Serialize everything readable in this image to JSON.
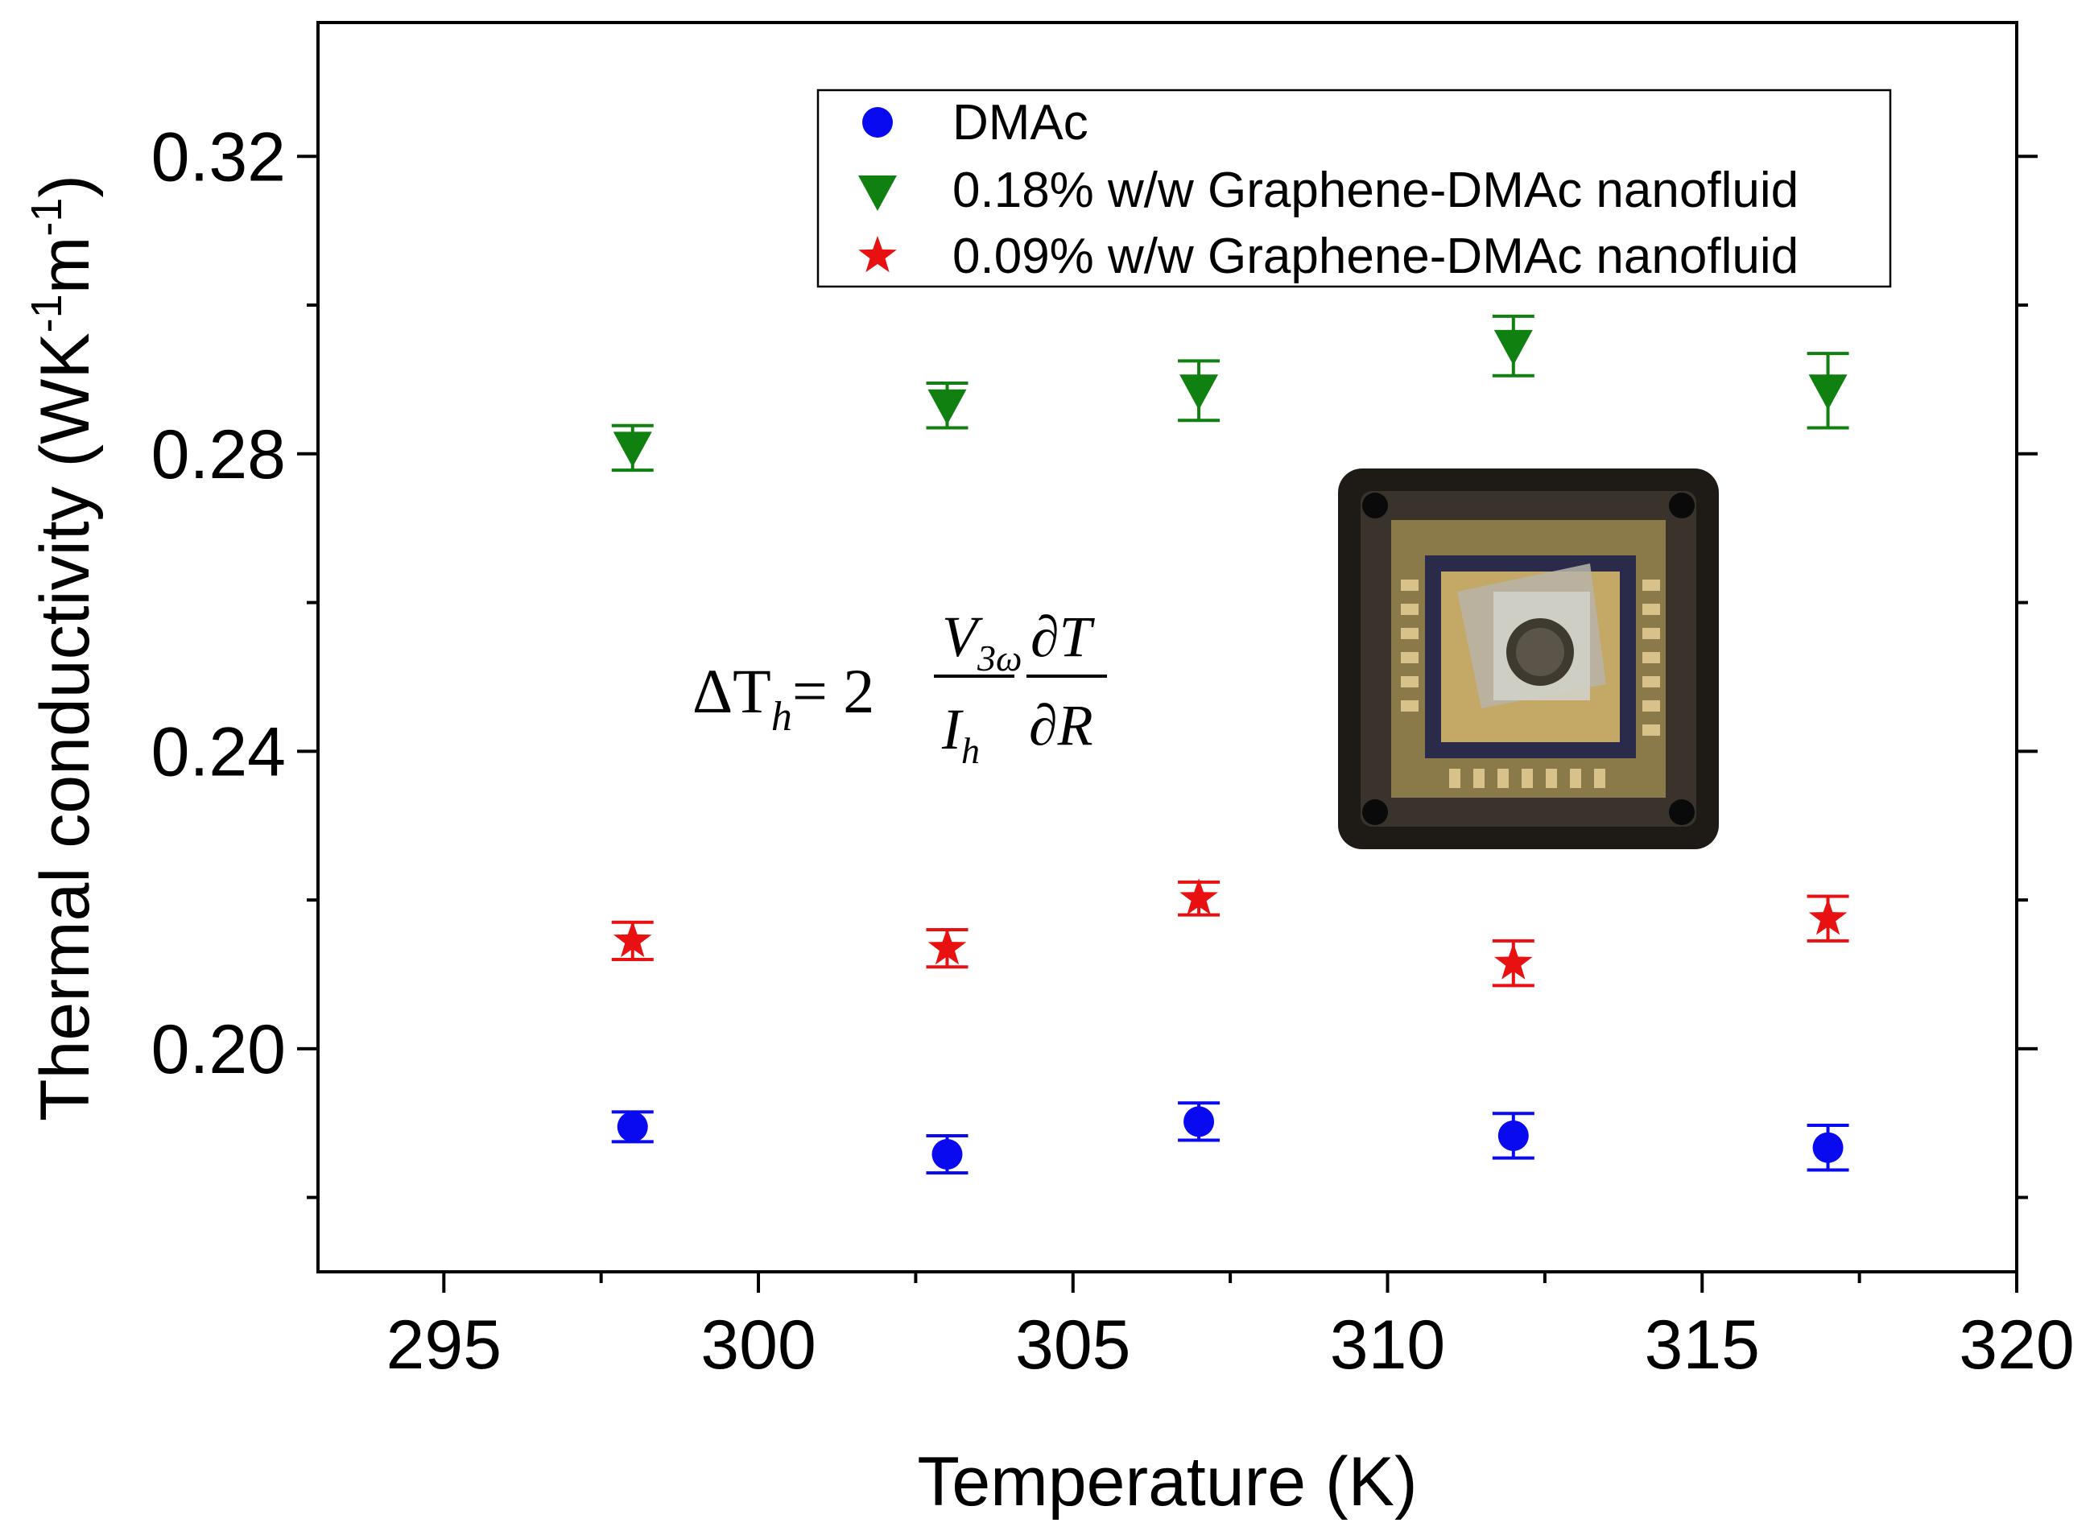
{
  "chart_data": {
    "type": "scatter",
    "xlabel": "Temperature (K)",
    "ylabel": {
      "main": "Thermal conductivity (WK",
      "sup1": "-1",
      "mid": "m",
      "sup2": "-1",
      "end": ")"
    },
    "xlim": [
      293,
      320
    ],
    "ylim": [
      0.17,
      0.338
    ],
    "x_ticks": [
      "295",
      "300",
      "305",
      "310",
      "315",
      "320"
    ],
    "y_ticks": [
      "0.20",
      "0.24",
      "0.28",
      "0.32"
    ],
    "grid": false,
    "legend_position": "top-right",
    "series": [
      {
        "name": "DMAc",
        "marker": "circle",
        "color": "#0a0af0",
        "points": [
          {
            "x": 298,
            "y": 0.1895,
            "err": 0.002
          },
          {
            "x": 303,
            "y": 0.1858,
            "err": 0.0025
          },
          {
            "x": 307,
            "y": 0.1902,
            "err": 0.0025
          },
          {
            "x": 312,
            "y": 0.1883,
            "err": 0.003
          },
          {
            "x": 317,
            "y": 0.1867,
            "err": 0.003
          }
        ]
      },
      {
        "name": "0.18% w/w Graphene-DMAc nanofluid",
        "marker": "triangle-down",
        "color": "#108010",
        "points": [
          {
            "x": 298,
            "y": 0.2808,
            "err": 0.003
          },
          {
            "x": 303,
            "y": 0.2865,
            "err": 0.003
          },
          {
            "x": 307,
            "y": 0.2885,
            "err": 0.004
          },
          {
            "x": 312,
            "y": 0.2945,
            "err": 0.004
          },
          {
            "x": 317,
            "y": 0.2885,
            "err": 0.005
          }
        ]
      },
      {
        "name": "0.09% w/w Graphene-DMAc nanofluid",
        "marker": "star",
        "color": "#e81010",
        "points": [
          {
            "x": 298,
            "y": 0.2145,
            "err": 0.0025
          },
          {
            "x": 303,
            "y": 0.2135,
            "err": 0.0025
          },
          {
            "x": 307,
            "y": 0.2202,
            "err": 0.0022
          },
          {
            "x": 312,
            "y": 0.2115,
            "err": 0.003
          },
          {
            "x": 317,
            "y": 0.2175,
            "err": 0.003
          }
        ]
      }
    ],
    "annotation_equation": {
      "lhs": "ΔT",
      "lhs_sub": "h",
      "eq": "= 2",
      "num1": "V",
      "num1_sub": "3ω",
      "den1": "I",
      "den1_sub": "h",
      "num2": "∂T",
      "den2": "∂R"
    },
    "inset_image": "photo-of-3-omega-sensor-chip-package"
  }
}
